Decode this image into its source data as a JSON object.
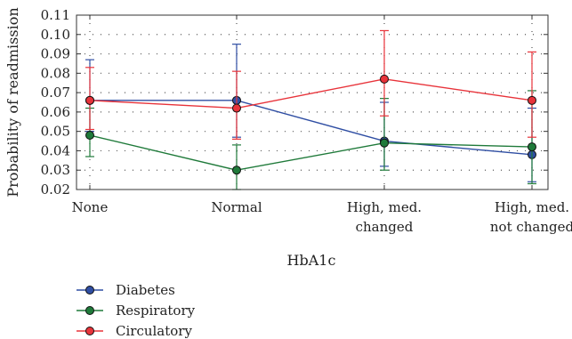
{
  "chart_data": {
    "type": "line",
    "xlabel": "HbA1c",
    "ylabel": "Probability of readmission",
    "categories": [
      [
        "None"
      ],
      [
        "Normal"
      ],
      [
        "High, med.",
        "changed"
      ],
      [
        "High, med.",
        "not changed"
      ]
    ],
    "ylim": [
      0.02,
      0.11
    ],
    "yticks": [
      "0.02",
      "0.03",
      "0.04",
      "0.05",
      "0.06",
      "0.07",
      "0.08",
      "0.09",
      "0.10",
      "0.11"
    ],
    "grid": true,
    "legend_position": "bottom-left",
    "series": [
      {
        "name": "Diabetes",
        "color": "#2f4ea3",
        "values": [
          0.066,
          0.066,
          0.045,
          0.038
        ],
        "err_low": [
          0.05,
          0.047,
          0.032,
          0.024
        ],
        "err_high": [
          0.087,
          0.095,
          0.065,
          0.062
        ]
      },
      {
        "name": "Respiratory",
        "color": "#1f7a3a",
        "values": [
          0.048,
          0.03,
          0.044,
          0.042
        ],
        "err_low": [
          0.037,
          0.02,
          0.03,
          0.023
        ],
        "err_high": [
          0.062,
          0.043,
          0.067,
          0.071
        ]
      },
      {
        "name": "Circulatory",
        "color": "#e8333a",
        "values": [
          0.066,
          0.062,
          0.077,
          0.066
        ],
        "err_low": [
          0.051,
          0.046,
          0.058,
          0.047
        ],
        "err_high": [
          0.083,
          0.081,
          0.102,
          0.091
        ]
      }
    ]
  }
}
